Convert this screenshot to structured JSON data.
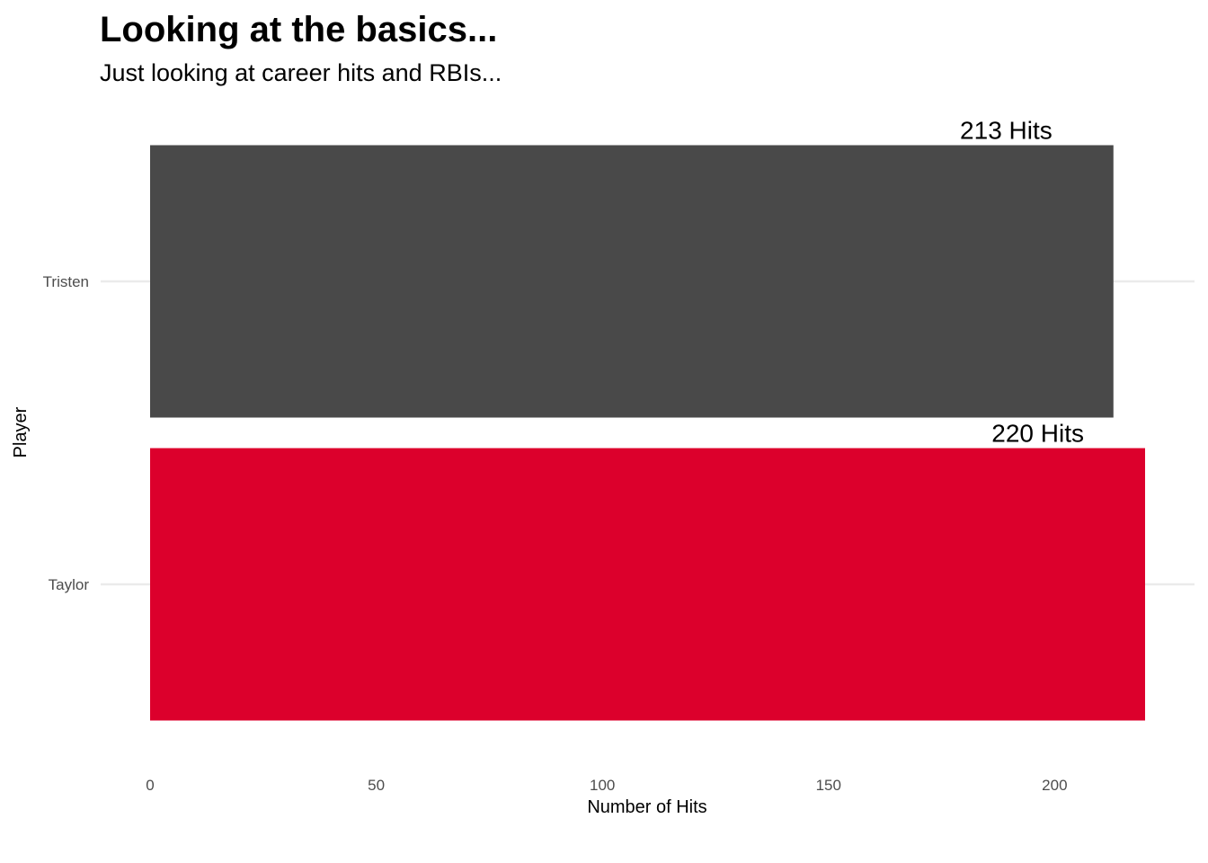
{
  "chart_data": {
    "type": "bar",
    "orientation": "horizontal",
    "title": "Looking at the basics...",
    "subtitle": "Just looking at career hits and RBIs...",
    "xlabel": "Number of Hits",
    "ylabel": "Player",
    "categories": [
      "Tristen",
      "Taylor"
    ],
    "values": [
      213,
      220
    ],
    "data_labels": [
      "213 Hits",
      "220 Hits"
    ],
    "bar_colors": [
      "#494949",
      "#dc002c"
    ],
    "xlim": [
      0,
      220
    ],
    "x_ticks": [
      0,
      50,
      100,
      150,
      200
    ],
    "x_tick_labels": [
      "0",
      "50",
      "100",
      "150",
      "200"
    ],
    "grid": "horizontal-major",
    "legend": "none"
  }
}
